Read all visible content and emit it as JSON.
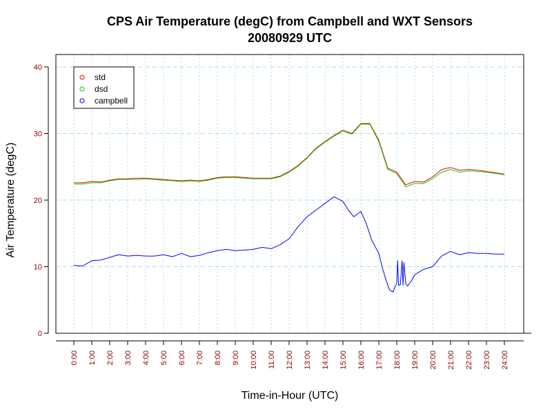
{
  "chart_data": {
    "type": "line",
    "title": "CPS Air Temperature (degC) from Campbell and WXT Sensors",
    "subtitle": "20080929  UTC",
    "xlabel": "Time-in-Hour (UTC)",
    "ylabel": "Air Temperature (degC)",
    "xlim": [
      0,
      24
    ],
    "ylim": [
      0,
      40
    ],
    "x_ticks": [
      0,
      1,
      2,
      3,
      4,
      5,
      6,
      7,
      8,
      9,
      10,
      11,
      12,
      13,
      14,
      15,
      16,
      17,
      18,
      19,
      20,
      21,
      22,
      23,
      24
    ],
    "x_tick_labels": [
      "0:00",
      "1:00",
      "2:00",
      "3:00",
      "4:00",
      "5:00",
      "6:00",
      "7:00",
      "8:00",
      "9:00",
      "10:00",
      "11:00",
      "12:00",
      "13:00",
      "14:00",
      "15:00",
      "16:00",
      "17:00",
      "18:00",
      "19:00",
      "20:00",
      "21:00",
      "22:00",
      "23:00",
      "24:00"
    ],
    "y_ticks": [
      0,
      10,
      20,
      30,
      40
    ],
    "y_tick_labels": [
      "0",
      "10",
      "20",
      "30",
      "40"
    ],
    "grid": true,
    "legend_position": "top-left",
    "series": [
      {
        "name": "std",
        "color": "#ff0000",
        "x": [
          0,
          0.5,
          1,
          1.5,
          2,
          2.5,
          3,
          3.5,
          4,
          4.5,
          5,
          5.5,
          6,
          6.5,
          7,
          7.5,
          8,
          8.5,
          9,
          9.5,
          10,
          10.5,
          11,
          11.5,
          12,
          12.5,
          13,
          13.5,
          14,
          14.5,
          15,
          15.5,
          16,
          16.5,
          17,
          17.5,
          18,
          18.5,
          19,
          19.5,
          20,
          20.5,
          21,
          21.5,
          22,
          22.5,
          23,
          23.5,
          24
        ],
        "values": [
          22.6,
          22.6,
          22.8,
          22.7,
          23.0,
          23.2,
          23.2,
          23.3,
          23.3,
          23.2,
          23.1,
          23.0,
          22.9,
          23.0,
          22.9,
          23.1,
          23.4,
          23.5,
          23.5,
          23.4,
          23.3,
          23.3,
          23.3,
          23.6,
          24.3,
          25.2,
          26.4,
          27.8,
          28.8,
          29.7,
          30.5,
          30.0,
          31.5,
          31.5,
          29.0,
          24.8,
          24.2,
          22.3,
          22.8,
          22.7,
          23.5,
          24.6,
          24.9,
          24.5,
          24.6,
          24.5,
          24.3,
          24.1,
          23.9
        ]
      },
      {
        "name": "dsd",
        "color": "#00cc00",
        "x": [
          0,
          0.5,
          1,
          1.5,
          2,
          2.5,
          3,
          3.5,
          4,
          4.5,
          5,
          5.5,
          6,
          6.5,
          7,
          7.5,
          8,
          8.5,
          9,
          9.5,
          10,
          10.5,
          11,
          11.5,
          12,
          12.5,
          13,
          13.5,
          14,
          14.5,
          15,
          15.5,
          16,
          16.5,
          17,
          17.5,
          18,
          18.5,
          19,
          19.5,
          20,
          20.5,
          21,
          21.5,
          22,
          22.5,
          23,
          23.5,
          24
        ],
        "values": [
          22.4,
          22.4,
          22.6,
          22.6,
          22.9,
          23.1,
          23.1,
          23.1,
          23.2,
          23.1,
          23.0,
          22.9,
          22.8,
          22.9,
          22.8,
          23.0,
          23.3,
          23.4,
          23.4,
          23.3,
          23.2,
          23.2,
          23.2,
          23.5,
          24.2,
          25.1,
          26.3,
          27.7,
          28.7,
          29.6,
          30.4,
          29.9,
          31.4,
          31.4,
          28.8,
          24.6,
          24.0,
          22.0,
          22.5,
          22.5,
          23.2,
          24.2,
          24.6,
          24.2,
          24.4,
          24.3,
          24.2,
          24.0,
          23.8
        ]
      },
      {
        "name": "campbell",
        "color": "#0000ff",
        "x": [
          0,
          0.5,
          1,
          1.5,
          2,
          2.5,
          3,
          3.5,
          4,
          4.5,
          5,
          5.5,
          6,
          6.5,
          7,
          7.5,
          8,
          8.5,
          9,
          9.5,
          10,
          10.5,
          11,
          11.5,
          12,
          12.5,
          13,
          13.5,
          14,
          14.5,
          15,
          15.3,
          15.6,
          16,
          16.3,
          16.6,
          17,
          17.2,
          17.4,
          17.6,
          17.8,
          17.9,
          18.0,
          18.05,
          18.1,
          18.2,
          18.3,
          18.35,
          18.4,
          18.5,
          18.6,
          18.8,
          19,
          19.5,
          20,
          20.5,
          21,
          21.5,
          22,
          22.5,
          23,
          23.5,
          24
        ],
        "values": [
          10.2,
          10.1,
          10.9,
          11.0,
          11.4,
          11.8,
          11.6,
          11.7,
          11.6,
          11.6,
          11.8,
          11.5,
          12.0,
          11.5,
          11.7,
          12.1,
          12.4,
          12.6,
          12.4,
          12.5,
          12.6,
          12.9,
          12.7,
          13.3,
          14.2,
          16.0,
          17.5,
          18.5,
          19.5,
          20.5,
          19.8,
          18.5,
          17.5,
          18.3,
          16.5,
          14.0,
          12.0,
          9.8,
          8.0,
          6.5,
          6.2,
          7.0,
          7.5,
          10.9,
          7.2,
          7.3,
          10.9,
          7.2,
          10.6,
          7.5,
          7.1,
          7.8,
          8.8,
          9.6,
          10.0,
          11.6,
          12.3,
          11.8,
          12.1,
          12.0,
          12.0,
          11.9,
          11.9
        ]
      }
    ]
  }
}
